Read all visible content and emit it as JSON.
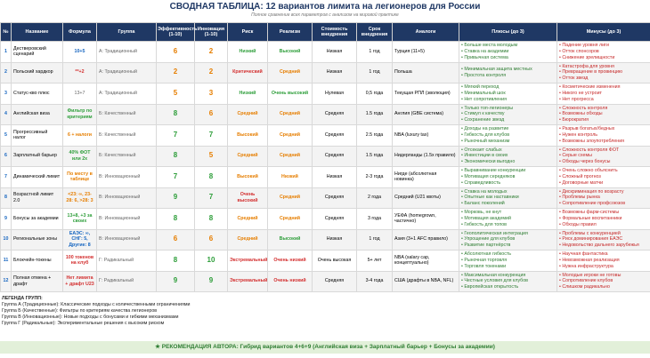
{
  "title": "СВОДНАЯ ТАБЛИЦА: 12 вариантов лимита на легионеров для России",
  "subtitle": "Полное сравнение всех параметров с анализом на мировой практике",
  "table": {
    "columns": [
      "№",
      "Название",
      "Формула",
      "Группа",
      "Эффективность (1-10)",
      "Инновация (1-10)",
      "Риск",
      "Реализм",
      "Стоимость внедрения",
      "Срок внедрения",
      "Аналоги",
      "Плюсы (до 3)",
      "Минусы (до 3)"
    ],
    "rows": [
      [
        1,
        "Дестверовский сценарий",
        "10+5",
        "А: Традиционный",
        6,
        2,
        "Низкий",
        "Высокий",
        "Низкая",
        "1 год",
        "Турция (11+5)",
        [
          "Больше места молодым",
          "Ставка на академии",
          "Привычная система"
        ],
        [
          "Падение уровня лиги",
          "Отток спонсоров",
          "Снижение зрелищности"
        ]
      ],
      [
        2,
        "Польский хардкор",
        "**+2",
        "А: Традиционный",
        2,
        2,
        "Критический",
        "Средний",
        "Низкая",
        "1 год",
        "Польша",
        [
          "Минимальная защита местных",
          "Простота контроля"
        ],
        [
          "Катастрофа для уровня",
          "Превращение в провинцию",
          "Отток звезд"
        ]
      ],
      [
        3,
        "Статус-кво плюс",
        "13+7",
        "А: Традиционный",
        5,
        3,
        "Низкий",
        "Очень высокий",
        "Нулевая",
        "0,5 года",
        "Текущая РПЛ (эволюция)",
        [
          "Мягкий переход",
          "Минимальный шок",
          "Нет сопротивления"
        ],
        [
          "Косметические изменения",
          "Никого не устроит",
          "Нет прогресса"
        ]
      ],
      [
        4,
        "Английская виза",
        "Фильтр по критериям",
        "Б: Качественный",
        8,
        6,
        "Средний",
        "Средний",
        "Средняя",
        "1.5 года",
        "Англия (GBE система)",
        [
          "Только топ-легионеры",
          "Стимул к качеству",
          "Сохранение звезд"
        ],
        [
          "Сложность контроля",
          "Возможны обходы",
          "Бюрократия"
        ]
      ],
      [
        5,
        "Прогрессивный налог",
        "6 + налоги",
        "Б: Качественный",
        7,
        7,
        "Высокий",
        "Средний",
        "Средняя",
        "2.5 года",
        "NBA (luxury tax)",
        [
          "Доходы на развитие",
          "Гибкость для клубов",
          "Рыночный механизм"
        ],
        [
          "Разрыв богатых/бедных",
          "Нужен контроль",
          "Возможны злоупотребления"
        ]
      ],
      [
        6,
        "Зарплатный барьер",
        "40% ФОТ или 2x",
        "Б: Качественный",
        8,
        5,
        "Средний",
        "Средний",
        "Средняя",
        "1.5 года",
        "Нидерланды (1.5x правило)",
        [
          "Отсекает слабых",
          "Инвестиции в своих",
          "Экономически выгодно"
        ],
        [
          "Сложность контроля ФОТ",
          "Серые схемы",
          "Обходы через бонусы"
        ]
      ],
      [
        7,
        "Динамический лимит",
        "По месту в таблице",
        "В: Инновационный",
        7,
        8,
        "Высокий",
        "Низкий",
        "Низкая",
        "2-3 года",
        "Нигде (абсолютная новинка)",
        [
          "Выравнивание конкуренции",
          "Мотивация середняков",
          "Справедливость"
        ],
        [
          "Очень сложно объяснить",
          "Сложный прогноз",
          "Договорные матчи"
        ]
      ],
      [
        8,
        "Возрастной лимит 2.0",
        "<23: ∞, 23-28: 6, >28: 3",
        "В: Инновационный",
        9,
        7,
        "Очень высокий",
        "Средний",
        "Средняя",
        "2 года",
        "Средний (U21 квоты)",
        [
          "Ставка на молодых",
          "Опытные как наставники",
          "Баланс поколений"
        ],
        [
          "Дискриминация по возрасту",
          "Проблемы рынка",
          "Сопротивление профсоюзов"
        ]
      ],
      [
        9,
        "Бонусы за академии",
        "13+8, +3 за своих",
        "В: Инновационный",
        8,
        8,
        "Средний",
        "Средний",
        "Средняя",
        "3 года",
        "УЕФА (homegrown, частично)",
        [
          "Морковь, не кнут",
          "Мотивация академий",
          "Гибкость для топов"
        ],
        [
          "Возможны фарм-системы",
          "Формальные воспитанники",
          "Обходы правил"
        ]
      ],
      [
        10,
        "Региональные зоны",
        "ЕАЭС: ∞, СНГ: 5, Другие: 8",
        "В: Инновационный",
        6,
        6,
        "Средний",
        "Высокий",
        "Низкая",
        "1 год",
        "Азия (3+1 AFC правило)",
        [
          "Геополитическая интеграция",
          "Упрощение для клубов",
          "Развитие партнёрств"
        ],
        [
          "Проблемы с конкуренцией",
          "Риск доминирования ЕАЭС",
          "Недовольство дальнего зарубежья"
        ]
      ],
      [
        11,
        "Блокчейн-токены",
        "100 токенов на клуб",
        "Г: Радикальный",
        8,
        10,
        "Экстремальный",
        "Очень низкий",
        "Очень высокая",
        "5+ лет",
        "NBA (salary cap, концептуально)",
        [
          "Абсолютная гибкость",
          "Рыночная торговля",
          "Торговля токенами"
        ],
        [
          "Научная фантастика",
          "Невозможная реализация",
          "Нужна инфраструктура"
        ]
      ],
      [
        12,
        "Полная отмена + драфт",
        "Нет лимита + драфт U23",
        "Г: Радикальный",
        9,
        9,
        "Экстремальный",
        "Очень низкий",
        "Средняя",
        "3-4 года",
        "США (драфты в NBA, NFL)",
        [
          "Максимальная конкуренция",
          "Честные условия для клубов",
          "Европейская открытость"
        ],
        [
          "Молодые игроки не готовы",
          "Сопротивление клубов",
          "Слишком радикально"
        ]
      ]
    ]
  },
  "legend": {
    "title": "ЛЕГЕНДА ГРУПП:",
    "items": [
      "Группа А (Традиционные): Классические подходы с количественными ограничениями",
      "Группа Б (Качественные): Фильтры по критериям качества легионеров",
      "Группа В (Инновационные): Новые подходы с бонусами и гибкими механизмами",
      "Группа Г (Радикальные): Экспериментальные решения с высоким риском"
    ]
  },
  "recommendation": "★ РЕКОМЕНДАЦИЯ АВТОРА: Гибрид вариантов 4+6+9 (Английская виза + Зарплатный барьер + Бонусы за академии)"
}
